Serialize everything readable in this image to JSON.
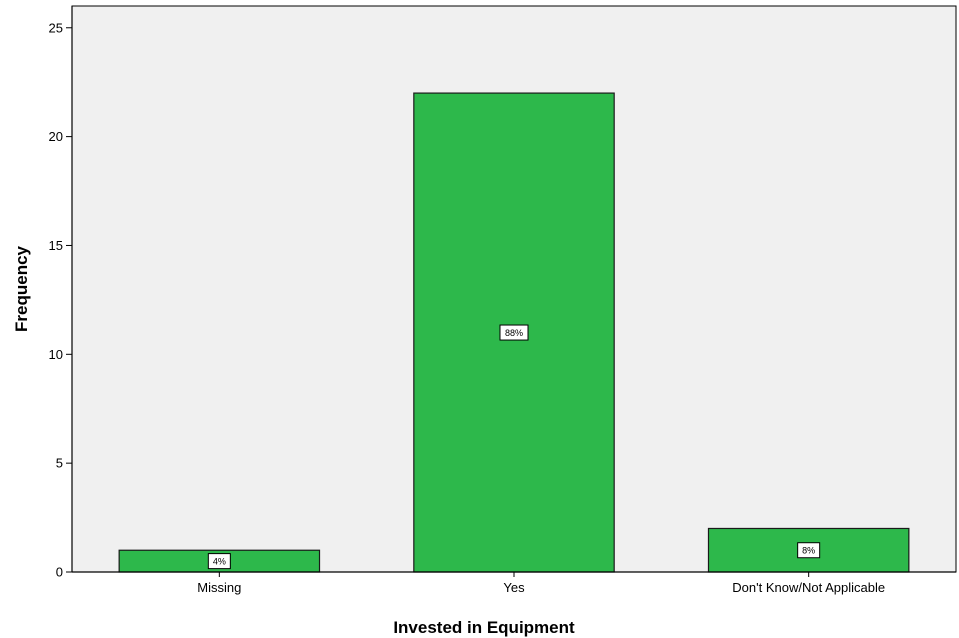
{
  "chart_data": {
    "type": "bar",
    "title": "",
    "xlabel": "Invested in Equipment",
    "ylabel": "Frequency",
    "categories": [
      "Missing",
      "Yes",
      "Don't Know/Not Applicable"
    ],
    "values": [
      1,
      22,
      2
    ],
    "data_labels": [
      "4%",
      "88%",
      "8%"
    ],
    "ylim": [
      0,
      26
    ],
    "yticks": [
      0,
      5,
      10,
      15,
      20,
      25
    ],
    "ytick_labels": [
      "0",
      "5",
      "10",
      "15",
      "20",
      "25"
    ],
    "grid": false,
    "legend": "none",
    "colors": {
      "bar_fill": "#2db84b",
      "bar_stroke": "#1a1a1a",
      "plot_background": "#f0f0f0",
      "page_background": "#ffffff",
      "axis": "#000000"
    }
  }
}
